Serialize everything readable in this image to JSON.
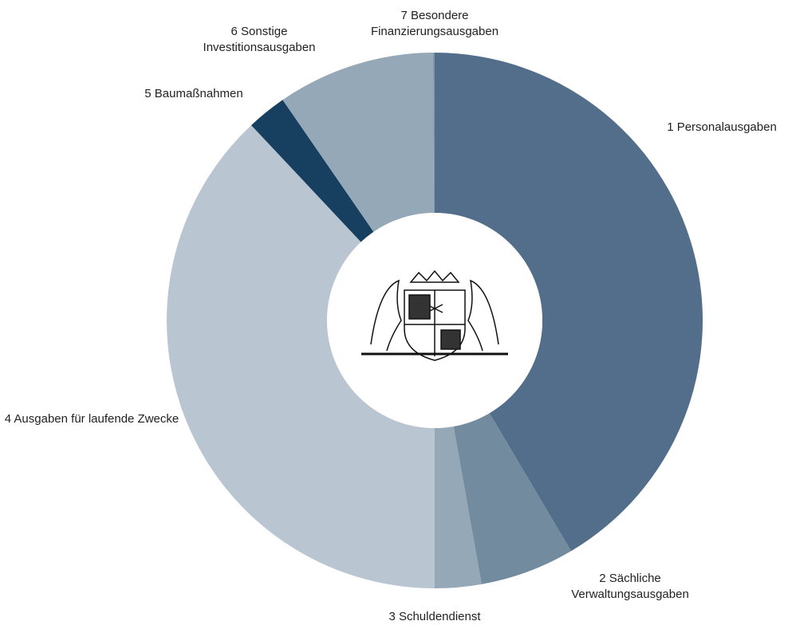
{
  "chart_data": {
    "type": "donut",
    "categories": [
      "1 Personalausgaben",
      "2 Sächliche Verwaltungsausgaben",
      "3 Schuldendienst",
      "4 Ausgaben für laufende Zwecke",
      "5 Baumaßnahmen",
      "6 Sonstige Investitionsausgaben",
      "7 Besondere Finanzierungsausgaben"
    ],
    "values": [
      41.5,
      5.7,
      2.8,
      38,
      2.4,
      9.5,
      0.1
    ],
    "colors": [
      "#526e8a",
      "#728b9e",
      "#95a8b8",
      "#b9c6d1",
      "#163f60",
      "#95a8b8",
      "#7f95a8"
    ]
  }
}
